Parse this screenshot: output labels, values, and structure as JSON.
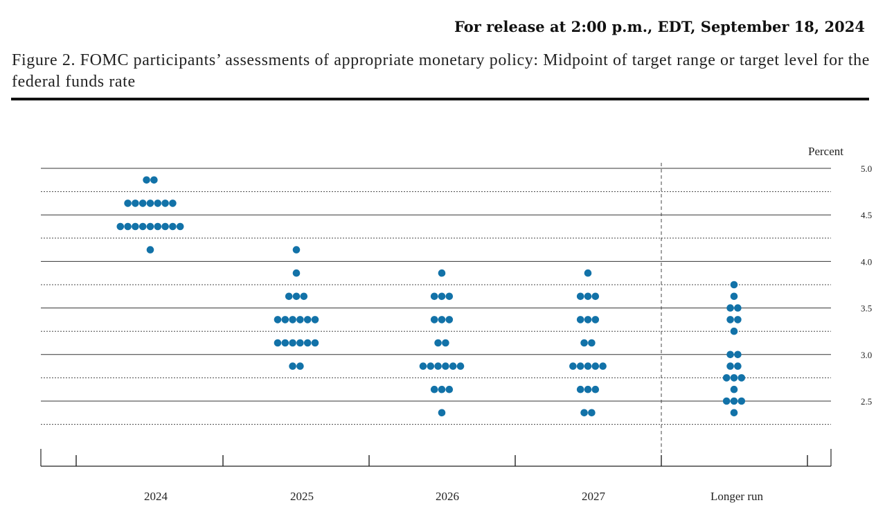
{
  "header": {
    "release": "For release at 2:00 p.m., EDT, September 18, 2024",
    "figure_title": "Figure 2.  FOMC participants’ assessments of appropriate monetary policy:  Midpoint of target range or target level for the federal funds rate"
  },
  "chart_data": {
    "type": "scatter",
    "subtype": "dot-plot",
    "unit_label": "Percent",
    "ylim": [
      2.25,
      5.0
    ],
    "y_ticks": [
      "2.5",
      "3.0",
      "3.5",
      "4.0",
      "4.5",
      "5.0"
    ],
    "categories": [
      "2024",
      "2025",
      "2026",
      "2027",
      "Longer run"
    ],
    "dot_color": "#1272a8",
    "grid": "solid at whole and half percent, dotted at quarter percents",
    "columns": [
      {
        "name": "2024",
        "dots": [
          {
            "rate": 4.875,
            "count": 2
          },
          {
            "rate": 4.625,
            "count": 7
          },
          {
            "rate": 4.375,
            "count": 9
          },
          {
            "rate": 4.125,
            "count": 1
          }
        ]
      },
      {
        "name": "2025",
        "dots": [
          {
            "rate": 4.125,
            "count": 1
          },
          {
            "rate": 3.875,
            "count": 1
          },
          {
            "rate": 3.625,
            "count": 3
          },
          {
            "rate": 3.375,
            "count": 6
          },
          {
            "rate": 3.125,
            "count": 6
          },
          {
            "rate": 2.875,
            "count": 2
          }
        ]
      },
      {
        "name": "2026",
        "dots": [
          {
            "rate": 3.875,
            "count": 1
          },
          {
            "rate": 3.625,
            "count": 3
          },
          {
            "rate": 3.375,
            "count": 3
          },
          {
            "rate": 3.125,
            "count": 2
          },
          {
            "rate": 2.875,
            "count": 6
          },
          {
            "rate": 2.625,
            "count": 3
          },
          {
            "rate": 2.375,
            "count": 1
          }
        ]
      },
      {
        "name": "2027",
        "dots": [
          {
            "rate": 3.875,
            "count": 1
          },
          {
            "rate": 3.625,
            "count": 3
          },
          {
            "rate": 3.375,
            "count": 3
          },
          {
            "rate": 3.125,
            "count": 2
          },
          {
            "rate": 2.875,
            "count": 5
          },
          {
            "rate": 2.625,
            "count": 3
          },
          {
            "rate": 2.375,
            "count": 2
          }
        ]
      },
      {
        "name": "Longer run",
        "dots": [
          {
            "rate": 3.75,
            "count": 1
          },
          {
            "rate": 3.625,
            "count": 1
          },
          {
            "rate": 3.5,
            "count": 2
          },
          {
            "rate": 3.375,
            "count": 2
          },
          {
            "rate": 3.25,
            "count": 1
          },
          {
            "rate": 3.0,
            "count": 2
          },
          {
            "rate": 2.875,
            "count": 2
          },
          {
            "rate": 2.75,
            "count": 3
          },
          {
            "rate": 2.625,
            "count": 1
          },
          {
            "rate": 2.5,
            "count": 3
          },
          {
            "rate": 2.375,
            "count": 1
          }
        ]
      }
    ]
  }
}
